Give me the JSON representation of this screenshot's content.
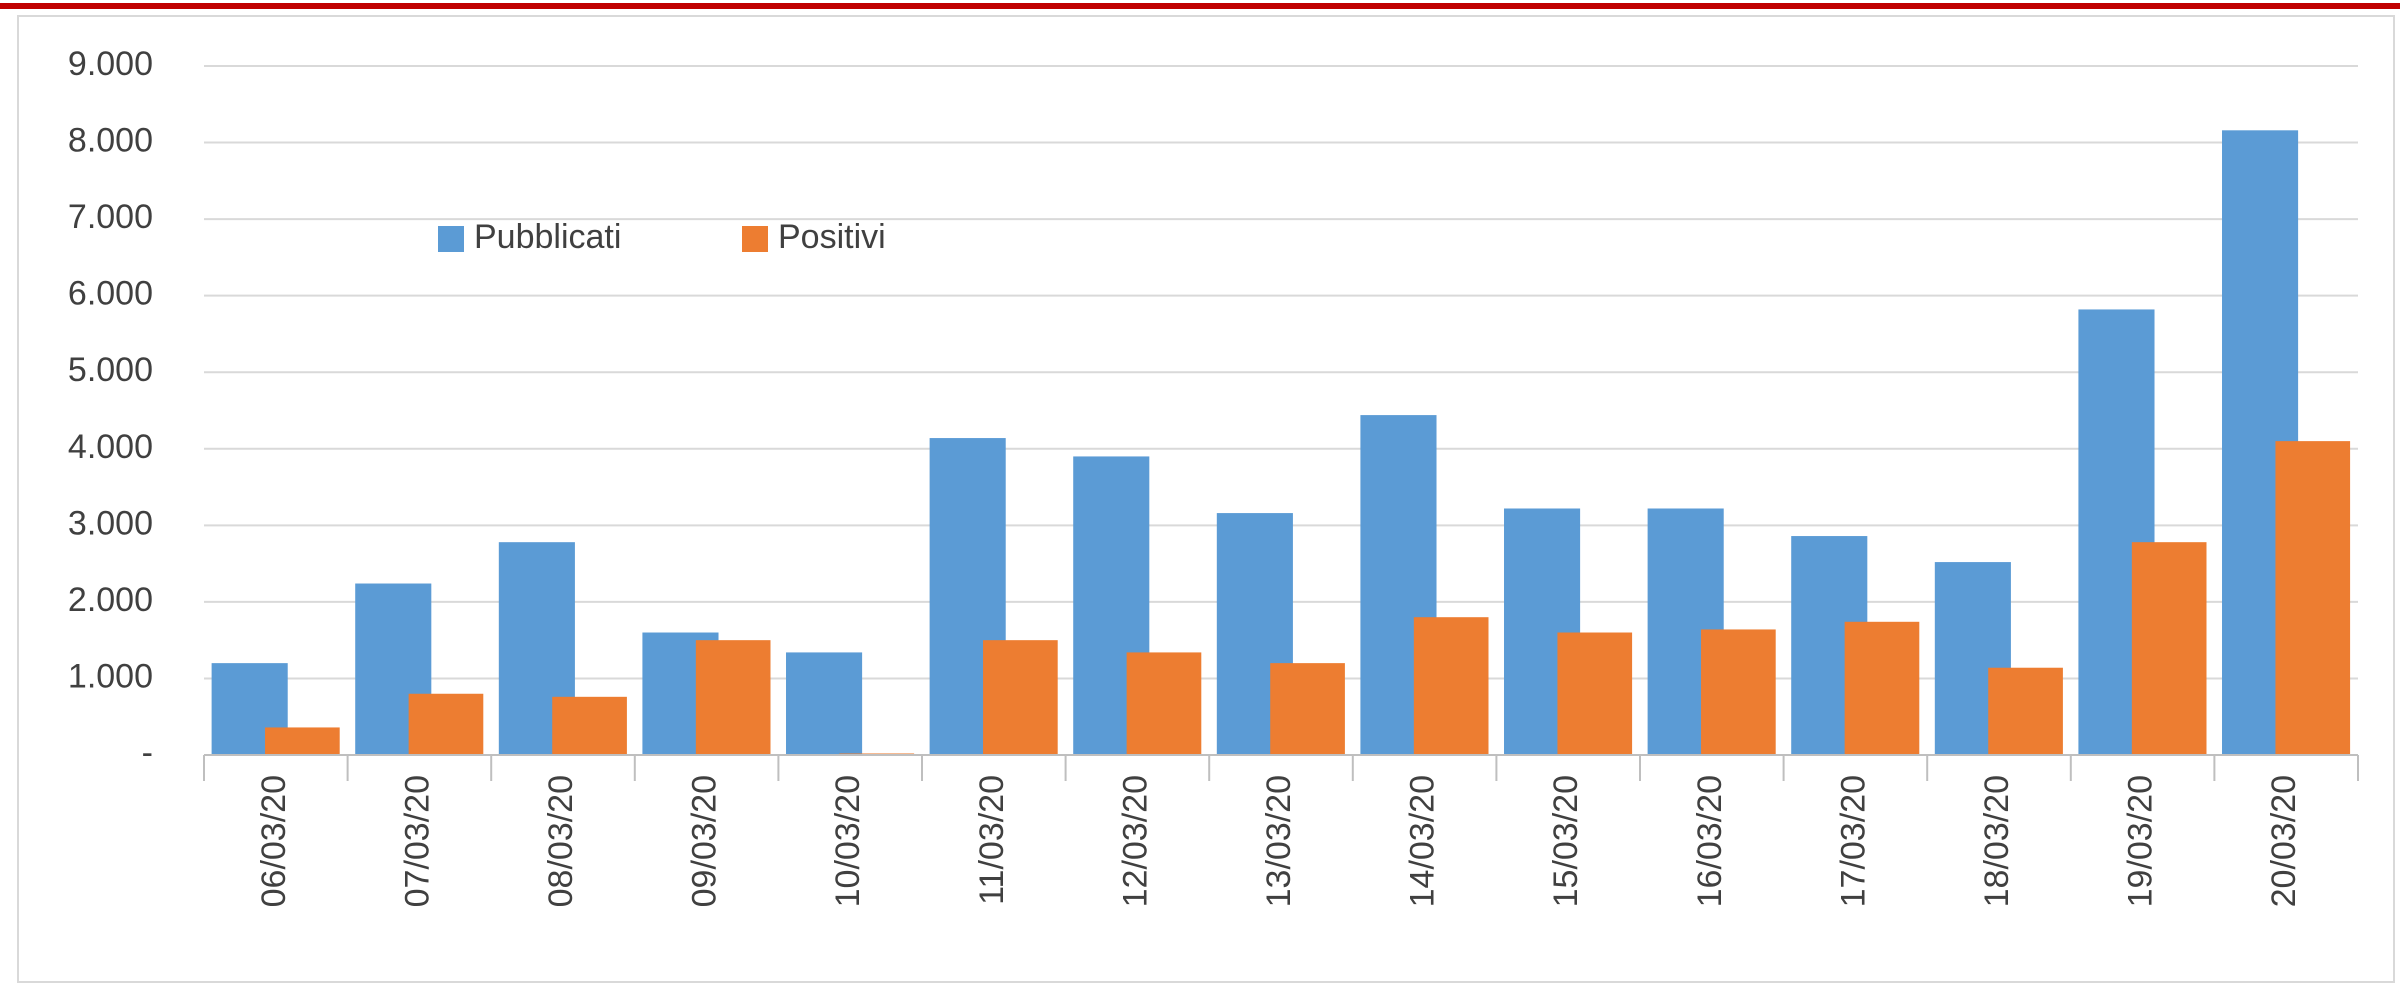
{
  "chart_data": {
    "type": "bar",
    "categories": [
      "06/03/20",
      "07/03/20",
      "08/03/20",
      "09/03/20",
      "10/03/20",
      "11/03/20",
      "12/03/20",
      "13/03/20",
      "14/03/20",
      "15/03/20",
      "16/03/20",
      "17/03/20",
      "18/03/20",
      "19/03/20",
      "20/03/20"
    ],
    "series": [
      {
        "name": "Pubblicati",
        "color": "#5b9bd5",
        "values": [
          1200,
          2240,
          2780,
          1600,
          1340,
          4140,
          3900,
          3160,
          4440,
          3220,
          3220,
          2860,
          2520,
          5820,
          8160
        ]
      },
      {
        "name": "Positivi",
        "color": "#ed7d31",
        "values": [
          360,
          800,
          760,
          1500,
          20,
          1500,
          1340,
          1200,
          1800,
          1600,
          1640,
          1740,
          1140,
          2780,
          4100
        ]
      }
    ],
    "ylim": [
      0,
      9000
    ],
    "yticks": [
      {
        "value": 0,
        "label": "-"
      },
      {
        "value": 1000,
        "label": "1.000"
      },
      {
        "value": 2000,
        "label": "2.000"
      },
      {
        "value": 3000,
        "label": "3.000"
      },
      {
        "value": 4000,
        "label": "4.000"
      },
      {
        "value": 5000,
        "label": "5.000"
      },
      {
        "value": 6000,
        "label": "6.000"
      },
      {
        "value": 7000,
        "label": "7.000"
      },
      {
        "value": 8000,
        "label": "8.000"
      },
      {
        "value": 9000,
        "label": "9.000"
      }
    ],
    "grid": true,
    "legend": "top-left"
  }
}
